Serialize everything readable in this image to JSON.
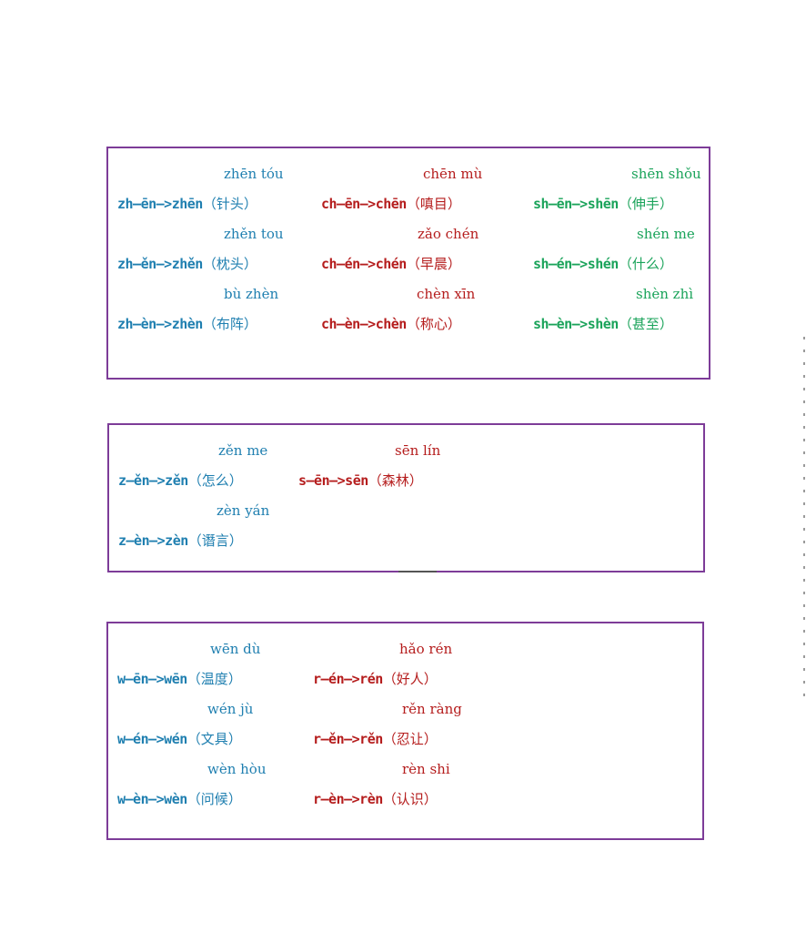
{
  "colors": {
    "blue": "#1f7fb0",
    "red": "#b51d1d",
    "green": "#1aa35a",
    "border": "#7d3c98"
  },
  "box1": {
    "cols": [
      {
        "color": "blue",
        "entries": [
          {
            "pinyin": "zhēn tóu",
            "rule": "zh—ēn—>zhēn",
            "word": "（针头）"
          },
          {
            "pinyin": "zhěn tou",
            "rule": "zh—ěn—>zhěn",
            "word": "（枕头）"
          },
          {
            "pinyin": "bù zhèn",
            "rule": "zh—èn—>zhèn",
            "word": "（布阵）"
          }
        ]
      },
      {
        "color": "red",
        "entries": [
          {
            "pinyin": "chēn mù",
            "rule": "ch—ēn—>chēn",
            "word": "（嗔目）"
          },
          {
            "pinyin": "zǎo chén",
            "rule": "ch—én—>chén",
            "word": "（早晨）"
          },
          {
            "pinyin": "chèn xīn",
            "rule": "ch—èn—>chèn",
            "word": "（称心）"
          }
        ]
      },
      {
        "color": "green",
        "entries": [
          {
            "pinyin": "shēn shǒu",
            "rule": "sh—ēn—>shēn",
            "word": "（伸手）"
          },
          {
            "pinyin": "shén me",
            "rule": "sh—én—>shén",
            "word": "（什么）"
          },
          {
            "pinyin": "shèn zhì",
            "rule": "sh—èn—>shèn",
            "word": "（甚至）"
          }
        ]
      }
    ]
  },
  "box2": {
    "cols": [
      {
        "color": "blue",
        "entries": [
          {
            "pinyin": "zěn me",
            "rule": "z—ěn—>zěn",
            "word": "（怎么）"
          },
          {
            "pinyin": "zèn yán",
            "rule": "z—èn—>zèn",
            "word": "（谮言）"
          }
        ]
      },
      {
        "color": "red",
        "entries": [
          {
            "pinyin": "sēn lín",
            "rule": "s—ēn—>sēn",
            "word": "（森林）"
          }
        ]
      }
    ]
  },
  "box3": {
    "cols": [
      {
        "color": "blue",
        "entries": [
          {
            "pinyin": "wēn dù",
            "rule": "w—ēn—>wēn",
            "word": "（温度）"
          },
          {
            "pinyin": "wén jù",
            "rule": "w—én—>wén",
            "word": "（文具）"
          },
          {
            "pinyin": "wèn hòu",
            "rule": "w—èn—>wèn",
            "word": "（问候）"
          }
        ]
      },
      {
        "color": "red",
        "entries": [
          {
            "pinyin": "hǎo rén",
            "rule": "r—én—>rén",
            "word": "（好人）"
          },
          {
            "pinyin": "rěn ràng",
            "rule": "r—ěn—>rěn",
            "word": "（忍让）"
          },
          {
            "pinyin": "rèn shi",
            "rule": "r—èn—>rèn",
            "word": "（认识）"
          }
        ]
      }
    ]
  }
}
